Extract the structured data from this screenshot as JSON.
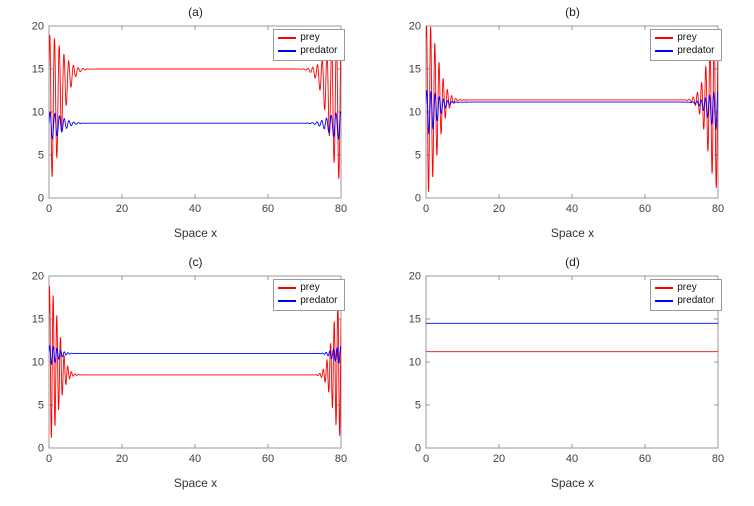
{
  "colors": {
    "prey": "#ff0000",
    "predator": "#0000ff",
    "axis": "#9a9a9a",
    "text": "#404040"
  },
  "chart_data": [
    {
      "type": "line",
      "title": "(a)",
      "xlabel": "Space x",
      "ylabel": "",
      "xlim": [
        0,
        80
      ],
      "ylim": [
        0,
        20
      ],
      "xticks": [
        0,
        20,
        40,
        60,
        80
      ],
      "yticks": [
        0,
        5,
        10,
        15,
        20
      ],
      "grid": false,
      "legend": [
        "prey",
        "predator"
      ],
      "legend_position": "top-right",
      "series": [
        {
          "name": "prey",
          "color": "#ff0000",
          "flat": 15,
          "edges": [
            {
              "side": "left",
              "width": 6,
              "amp": 8.5,
              "shift": -4.5,
              "period": 1.3,
              "phase": 0.6
            },
            {
              "side": "right",
              "width": 6,
              "amp": 8.5,
              "shift": -4.5,
              "period": 1.3,
              "phase": 1.8
            }
          ]
        },
        {
          "name": "predator",
          "color": "#0000ff",
          "flat": 8.7,
          "edges": [
            {
              "side": "left",
              "width": 6,
              "amp": 1.6,
              "shift": -0.3,
              "period": 1.3,
              "phase": 0.2
            },
            {
              "side": "right",
              "width": 6,
              "amp": 1.6,
              "shift": -0.3,
              "period": 1.3,
              "phase": 1.2
            }
          ]
        }
      ]
    },
    {
      "type": "line",
      "title": "(b)",
      "xlabel": "Space x",
      "ylabel": "",
      "xlim": [
        0,
        80
      ],
      "ylim": [
        0,
        20
      ],
      "xticks": [
        0,
        20,
        40,
        60,
        80
      ],
      "yticks": [
        0,
        5,
        10,
        15,
        20
      ],
      "grid": false,
      "legend": [
        "prey",
        "predator"
      ],
      "legend_position": "top-right",
      "series": [
        {
          "name": "prey",
          "color": "#ff0000",
          "flat": 11.4,
          "edges": [
            {
              "side": "left",
              "width": 5.5,
              "amp": 10.2,
              "shift": -0.8,
              "period": 1.15,
              "phase": 0.9
            },
            {
              "side": "right",
              "width": 5,
              "amp": 9.6,
              "shift": -0.8,
              "period": 1.15,
              "phase": 2.1
            }
          ]
        },
        {
          "name": "predator",
          "color": "#0000ff",
          "flat": 11.15,
          "edges": [
            {
              "side": "left",
              "width": 5.5,
              "amp": 2.6,
              "shift": -1.2,
              "period": 1.15,
              "phase": 0.4
            },
            {
              "side": "right",
              "width": 5,
              "amp": 2.2,
              "shift": -1.0,
              "period": 1.15,
              "phase": 1.4
            }
          ]
        }
      ]
    },
    {
      "type": "line",
      "title": "(c)",
      "xlabel": "Space x",
      "ylabel": "",
      "xlim": [
        0,
        80
      ],
      "ylim": [
        0,
        20
      ],
      "xticks": [
        0,
        20,
        40,
        60,
        80
      ],
      "yticks": [
        0,
        5,
        10,
        15,
        20
      ],
      "grid": false,
      "legend": [
        "prey",
        "predator"
      ],
      "legend_position": "top-right",
      "series": [
        {
          "name": "prey",
          "color": "#ff0000",
          "flat": 8.5,
          "edges": [
            {
              "side": "left",
              "width": 4.5,
              "amp": 9.0,
              "shift": 1.4,
              "period": 1.0,
              "phase": 0.7
            },
            {
              "side": "right",
              "width": 4,
              "amp": 8.2,
              "shift": 1.0,
              "period": 1.0,
              "phase": 2.4
            }
          ]
        },
        {
          "name": "predator",
          "color": "#0000ff",
          "flat": 11,
          "edges": [
            {
              "side": "left",
              "width": 4.5,
              "amp": 1.1,
              "shift": -0.2,
              "period": 1.0,
              "phase": 0.3
            },
            {
              "side": "right",
              "width": 4,
              "amp": 1.0,
              "shift": -0.2,
              "period": 1.0,
              "phase": 1.1
            }
          ]
        }
      ]
    },
    {
      "type": "line",
      "title": "(d)",
      "xlabel": "Space x",
      "ylabel": "",
      "xlim": [
        0,
        80
      ],
      "ylim": [
        0,
        20
      ],
      "xticks": [
        0,
        20,
        40,
        60,
        80
      ],
      "yticks": [
        0,
        5,
        10,
        15,
        20
      ],
      "grid": false,
      "legend": [
        "prey",
        "predator"
      ],
      "legend_position": "top-right",
      "series": [
        {
          "name": "prey",
          "color": "#ff0000",
          "flat": 11.2,
          "edges": []
        },
        {
          "name": "predator",
          "color": "#0000ff",
          "flat": 14.5,
          "edges": []
        }
      ]
    }
  ]
}
